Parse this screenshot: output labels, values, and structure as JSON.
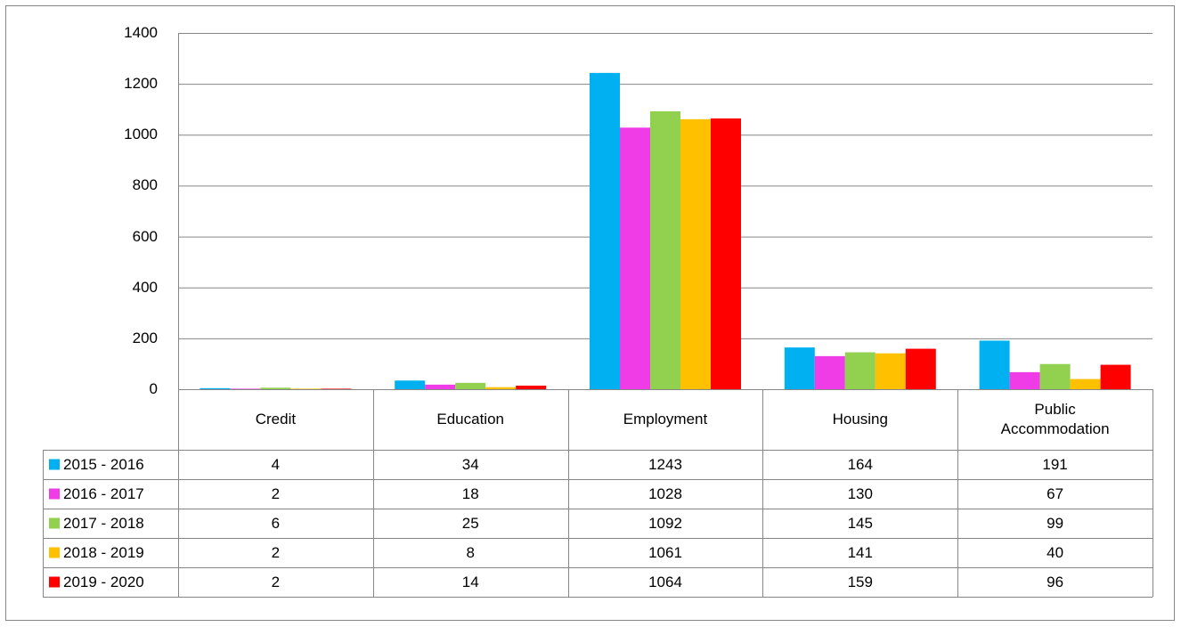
{
  "chart_data": {
    "type": "bar",
    "categories": [
      "Credit",
      "Education",
      "Employment",
      "Housing",
      "Public Accommodation"
    ],
    "series": [
      {
        "name": "2015 - 2016",
        "color": "#00b0f0",
        "values": [
          4,
          34,
          1243,
          164,
          191
        ]
      },
      {
        "name": "2016 - 2017",
        "color": "#f03ce6",
        "values": [
          2,
          18,
          1028,
          130,
          67
        ]
      },
      {
        "name": "2017 - 2018",
        "color": "#92d050",
        "values": [
          6,
          25,
          1092,
          145,
          99
        ]
      },
      {
        "name": "2018 - 2019",
        "color": "#ffc000",
        "values": [
          2,
          8,
          1061,
          141,
          40
        ]
      },
      {
        "name": "2019 - 2020",
        "color": "#ff0000",
        "values": [
          2,
          14,
          1064,
          159,
          96
        ]
      }
    ],
    "ylim": [
      0,
      1400
    ],
    "yticks": [
      0,
      200,
      400,
      600,
      800,
      1000,
      1200,
      1400
    ],
    "grid": true,
    "data_table": true
  }
}
